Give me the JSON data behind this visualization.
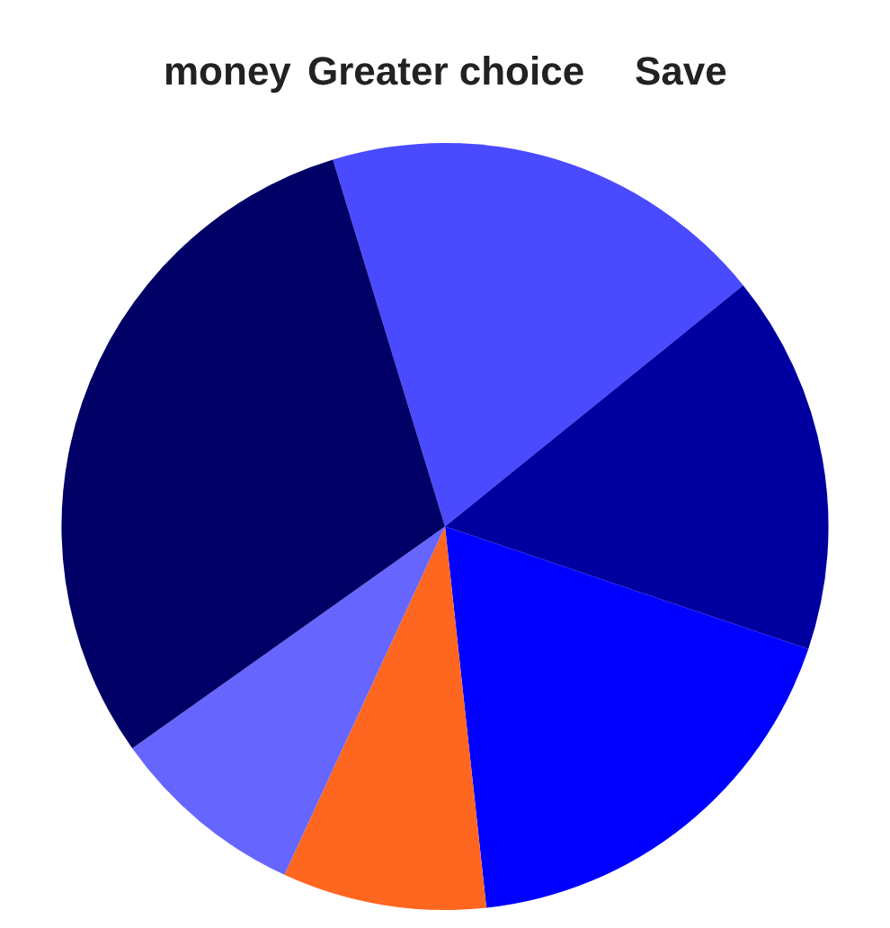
{
  "chart_data": {
    "type": "pie",
    "categories": [
      null,
      null,
      null,
      null,
      null,
      null
    ],
    "values": [
      18.9,
      16.0,
      18.1,
      8.6,
      8.3,
      30.1
    ],
    "colors": [
      "#4a4aff",
      "#0000a0",
      "#0000ff",
      "#ff6620",
      "#6666ff",
      "#000066"
    ],
    "annotations": [
      "money",
      "Greater choice",
      "Save"
    ],
    "legend": false
  }
}
